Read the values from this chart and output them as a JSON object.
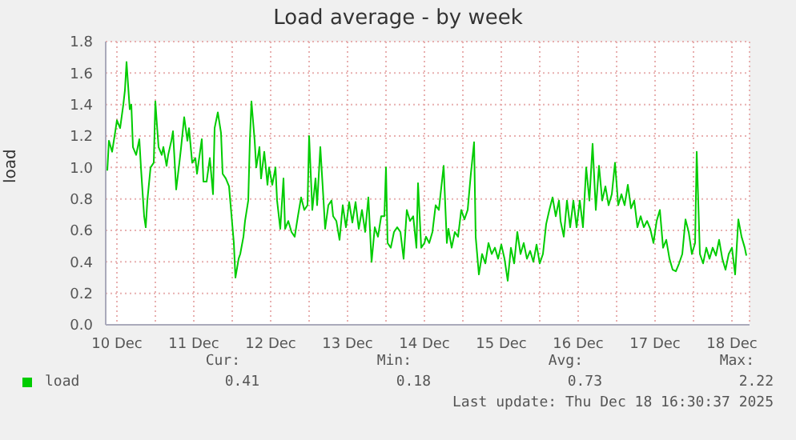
{
  "chart_data": {
    "type": "line",
    "title": "Load average - by week",
    "ylabel": "load",
    "x": [
      "2025-12-10T09:00",
      "2025-12-10T09:30",
      "2025-12-10T10:30",
      "2025-12-10T11:30",
      "2025-12-10T12:00",
      "2025-12-10T13:00",
      "2025-12-10T14:00",
      "2025-12-10T14:30",
      "2025-12-10T15:00",
      "2025-12-10T16:00",
      "2025-12-10T16:30",
      "2025-12-10T17:00",
      "2025-12-10T18:00",
      "2025-12-10T19:00",
      "2025-12-10T19:30",
      "2025-12-10T20:30",
      "2025-12-10T21:00",
      "2025-12-10T21:30",
      "2025-12-10T22:30",
      "2025-12-10T23:30",
      "2025-12-11T00:00",
      "2025-12-11T00:30",
      "2025-12-11T01:00",
      "2025-12-11T02:00",
      "2025-12-11T02:30",
      "2025-12-11T03:30",
      "2025-12-11T04:00",
      "2025-12-11T05:00",
      "2025-12-11T05:30",
      "2025-12-11T06:30",
      "2025-12-11T07:30",
      "2025-12-11T08:00",
      "2025-12-11T09:00",
      "2025-12-11T10:00",
      "2025-12-11T10:30",
      "2025-12-11T11:30",
      "2025-12-11T12:30",
      "2025-12-11T13:00",
      "2025-12-11T14:30",
      "2025-12-11T15:00",
      "2025-12-11T16:00",
      "2025-12-11T17:00",
      "2025-12-11T18:00",
      "2025-12-11T18:30",
      "2025-12-11T19:30",
      "2025-12-11T20:30",
      "2025-12-11T21:00",
      "2025-12-11T22:00",
      "2025-12-11T23:00",
      "2025-12-11T23:30",
      "2025-12-12T00:30",
      "2025-12-12T01:00",
      "2025-12-12T02:00",
      "2025-12-12T02:30",
      "2025-12-12T03:30",
      "2025-12-12T04:00",
      "2025-12-12T05:00",
      "2025-12-12T05:30",
      "2025-12-12T06:00",
      "2025-12-12T07:00",
      "2025-12-12T07:30",
      "2025-12-12T08:30",
      "2025-12-12T09:00",
      "2025-12-12T10:00",
      "2025-12-12T11:00",
      "2025-12-12T11:30",
      "2025-12-12T12:30",
      "2025-12-12T13:30",
      "2025-12-12T14:00",
      "2025-12-12T15:00",
      "2025-12-12T16:00",
      "2025-12-12T16:30",
      "2025-12-12T17:30",
      "2025-12-12T18:30",
      "2025-12-12T19:30",
      "2025-12-12T20:30",
      "2025-12-12T21:30",
      "2025-12-12T22:30",
      "2025-12-12T23:30",
      "2025-12-13T00:00",
      "2025-12-13T01:00",
      "2025-12-13T02:00",
      "2025-12-13T02:30",
      "2025-12-13T03:30",
      "2025-12-13T04:30",
      "2025-12-13T05:00",
      "2025-12-13T06:00",
      "2025-12-13T07:00",
      "2025-12-13T07:30",
      "2025-12-13T08:30",
      "2025-12-13T09:30",
      "2025-12-13T10:30",
      "2025-12-13T11:30",
      "2025-12-13T12:30",
      "2025-12-13T13:30",
      "2025-12-13T14:30",
      "2025-12-13T15:30",
      "2025-12-13T16:30",
      "2025-12-13T17:30",
      "2025-12-13T18:30",
      "2025-12-13T19:30",
      "2025-12-13T20:30",
      "2025-12-13T21:30",
      "2025-12-13T22:30",
      "2025-12-13T23:30",
      "2025-12-14T00:00",
      "2025-12-14T00:30",
      "2025-12-14T01:30",
      "2025-12-14T02:30",
      "2025-12-14T03:30",
      "2025-12-14T04:30",
      "2025-12-14T05:30",
      "2025-12-14T06:30",
      "2025-12-14T07:30",
      "2025-12-14T08:30",
      "2025-12-14T09:30",
      "2025-12-14T10:00",
      "2025-12-14T11:00",
      "2025-12-14T12:00",
      "2025-12-14T12:30",
      "2025-12-14T13:30",
      "2025-12-14T14:30",
      "2025-12-14T15:30",
      "2025-12-14T16:30",
      "2025-12-14T18:00",
      "2025-12-14T19:00",
      "2025-12-14T19:30",
      "2025-12-14T20:30",
      "2025-12-14T21:30",
      "2025-12-14T22:30",
      "2025-12-14T23:30",
      "2025-12-15T00:30",
      "2025-12-15T01:30",
      "2025-12-15T02:30",
      "2025-12-15T03:30",
      "2025-12-15T04:00",
      "2025-12-15T05:00",
      "2025-12-15T06:00",
      "2025-12-15T07:00",
      "2025-12-15T08:00",
      "2025-12-15T09:00",
      "2025-12-15T10:00",
      "2025-12-15T11:00",
      "2025-12-15T12:00",
      "2025-12-15T13:00",
      "2025-12-15T14:00",
      "2025-12-15T15:00",
      "2025-12-15T16:00",
      "2025-12-15T17:00",
      "2025-12-15T18:00",
      "2025-12-15T19:00",
      "2025-12-15T20:00",
      "2025-12-15T21:00",
      "2025-12-15T22:00",
      "2025-12-15T23:00",
      "2025-12-16T00:00",
      "2025-12-16T01:00",
      "2025-12-16T02:00",
      "2025-12-16T03:00",
      "2025-12-16T04:00",
      "2025-12-16T05:00",
      "2025-12-16T06:00",
      "2025-12-16T06:30",
      "2025-12-16T07:30",
      "2025-12-16T08:30",
      "2025-12-16T09:30",
      "2025-12-16T10:30",
      "2025-12-16T11:30",
      "2025-12-16T12:30",
      "2025-12-16T13:30",
      "2025-12-16T14:30",
      "2025-12-16T15:30",
      "2025-12-16T16:30",
      "2025-12-16T17:30",
      "2025-12-16T18:30",
      "2025-12-16T19:30",
      "2025-12-16T20:30",
      "2025-12-16T21:30",
      "2025-12-16T22:30",
      "2025-12-16T23:30",
      "2025-12-17T00:30",
      "2025-12-17T01:30",
      "2025-12-17T02:30",
      "2025-12-17T03:30",
      "2025-12-17T04:30",
      "2025-12-17T05:30",
      "2025-12-17T06:30",
      "2025-12-17T07:30",
      "2025-12-17T08:30",
      "2025-12-17T09:30",
      "2025-12-17T10:30",
      "2025-12-17T11:30",
      "2025-12-17T12:30",
      "2025-12-17T13:30",
      "2025-12-17T14:30",
      "2025-12-17T15:30",
      "2025-12-17T16:30",
      "2025-12-17T17:30",
      "2025-12-17T18:30",
      "2025-12-17T19:30",
      "2025-12-17T20:30",
      "2025-12-17T21:30",
      "2025-12-17T22:30",
      "2025-12-17T23:30",
      "2025-12-18T00:30",
      "2025-12-18T01:00",
      "2025-12-18T02:00",
      "2025-12-18T03:00",
      "2025-12-18T04:00",
      "2025-12-18T05:00",
      "2025-12-18T06:00",
      "2025-12-18T07:00",
      "2025-12-18T08:00",
      "2025-12-18T09:00",
      "2025-12-18T10:00",
      "2025-12-18T11:00",
      "2025-12-18T12:00",
      "2025-12-18T13:00",
      "2025-12-18T14:00",
      "2025-12-18T15:00",
      "2025-12-18T16:00",
      "2025-12-18T16:30"
    ],
    "series": [
      {
        "name": "load",
        "color": "#00cc00",
        "values": [
          0.98,
          1.17,
          1.1,
          1.23,
          1.3,
          1.25,
          1.4,
          1.49,
          1.67,
          1.37,
          1.4,
          1.13,
          1.08,
          1.18,
          1.0,
          0.69,
          0.62,
          0.79,
          1.0,
          1.03,
          1.42,
          1.27,
          1.13,
          1.08,
          1.13,
          1.01,
          1.08,
          1.17,
          1.23,
          0.86,
          1.03,
          1.12,
          1.32,
          1.17,
          1.25,
          1.03,
          1.06,
          0.96,
          1.18,
          0.91,
          0.91,
          1.06,
          0.83,
          1.25,
          1.35,
          1.22,
          0.96,
          0.93,
          0.88,
          0.76,
          0.52,
          0.3,
          0.42,
          0.45,
          0.56,
          0.66,
          0.79,
          1.17,
          1.42,
          1.17,
          1.0,
          1.13,
          0.93,
          1.1,
          0.89,
          1.0,
          0.89,
          1.0,
          0.79,
          0.61,
          0.93,
          0.61,
          0.66,
          0.59,
          0.56,
          0.69,
          0.81,
          0.73,
          0.76,
          1.2,
          0.73,
          0.93,
          0.76,
          1.13,
          0.79,
          0.61,
          0.76,
          0.79,
          0.69,
          0.66,
          0.54,
          0.76,
          0.62,
          0.78,
          0.65,
          0.78,
          0.61,
          0.73,
          0.59,
          0.81,
          0.4,
          0.62,
          0.56,
          0.69,
          0.69,
          1.0,
          0.52,
          0.49,
          0.59,
          0.62,
          0.59,
          0.42,
          0.73,
          0.66,
          0.69,
          0.49,
          0.9,
          0.49,
          0.52,
          0.56,
          0.52,
          0.59,
          0.76,
          0.73,
          1.01,
          0.52,
          0.61,
          0.49,
          0.59,
          0.56,
          0.73,
          0.67,
          0.73,
          0.96,
          1.16,
          0.56,
          0.32,
          0.45,
          0.39,
          0.52,
          0.45,
          0.49,
          0.42,
          0.51,
          0.42,
          0.28,
          0.49,
          0.39,
          0.59,
          0.45,
          0.52,
          0.42,
          0.47,
          0.4,
          0.51,
          0.39,
          0.45,
          0.64,
          0.73,
          0.81,
          0.69,
          0.79,
          0.66,
          0.56,
          0.79,
          0.62,
          0.79,
          0.62,
          0.79,
          0.62,
          1.0,
          0.79,
          1.15,
          0.73,
          1.01,
          0.79,
          0.88,
          0.76,
          0.83,
          1.03,
          0.76,
          0.83,
          0.76,
          0.89,
          0.74,
          0.79,
          0.62,
          0.69,
          0.62,
          0.66,
          0.61,
          0.52,
          0.66,
          0.73,
          0.49,
          0.54,
          0.42,
          0.35,
          0.34,
          0.39,
          0.45,
          0.67,
          0.59,
          0.45,
          0.52,
          1.1,
          0.45,
          0.39,
          0.49,
          0.42,
          0.49,
          0.44,
          0.54,
          0.42,
          0.35,
          0.45,
          0.49,
          0.32,
          0.67,
          0.56,
          0.49,
          0.44
        ]
      }
    ],
    "xlim": [
      "2025-12-10T08:30",
      "2025-12-18T17:30"
    ],
    "xticks": [
      {
        "value": "2025-12-10T12:00",
        "label": "10 Dec"
      },
      {
        "value": "2025-12-11",
        "label": null
      },
      {
        "value": "2025-12-11T12:00",
        "label": "11 Dec"
      },
      {
        "value": "2025-12-12",
        "label": null
      },
      {
        "value": "2025-12-12T12:00",
        "label": "12 Dec"
      },
      {
        "value": "2025-12-13",
        "label": null
      },
      {
        "value": "2025-12-13T12:00",
        "label": "13 Dec"
      },
      {
        "value": "2025-12-14",
        "label": null
      },
      {
        "value": "2025-12-14T12:00",
        "label": "14 Dec"
      },
      {
        "value": "2025-12-15",
        "label": null
      },
      {
        "value": "2025-12-15T12:00",
        "label": "15 Dec"
      },
      {
        "value": "2025-12-16",
        "label": null
      },
      {
        "value": "2025-12-16T12:00",
        "label": "16 Dec"
      },
      {
        "value": "2025-12-17",
        "label": null
      },
      {
        "value": "2025-12-17T12:00",
        "label": "17 Dec"
      },
      {
        "value": "2025-12-18",
        "label": null
      },
      {
        "value": "2025-12-18T12:00",
        "label": "18 Dec"
      }
    ],
    "ylim": [
      0,
      1.8
    ],
    "yticks": [
      {
        "value": 0,
        "label": "0.0"
      },
      0.2,
      0.4,
      0.6,
      0.8,
      {
        "value": 1,
        "label": "1.0"
      },
      1.2,
      1.4,
      1.6,
      1.8
    ],
    "grid": true,
    "legend": "bottom left",
    "annotations": [
      "Cur:",
      "Min:",
      "Avg:",
      "Max:",
      "0.41",
      "0.18",
      "0.73",
      "2.22",
      "Last update: Thu Dec 18 16:30:37 2025"
    ]
  }
}
